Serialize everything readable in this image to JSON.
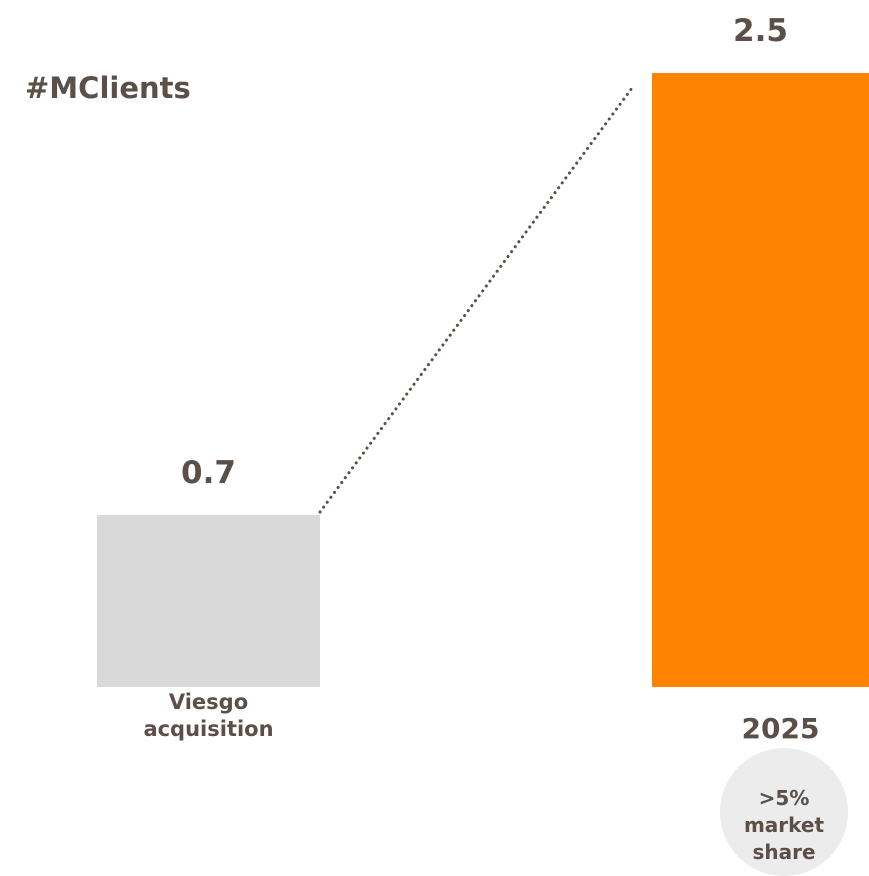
{
  "chart_data": {
    "type": "bar",
    "title": "#MClients",
    "categories": [
      "Viesgo acquisition",
      "2025"
    ],
    "values": [
      0.7,
      2.5
    ],
    "colors": [
      "#d9d9d9",
      "#ff8200"
    ],
    "annotation": ">5% market share"
  }
}
